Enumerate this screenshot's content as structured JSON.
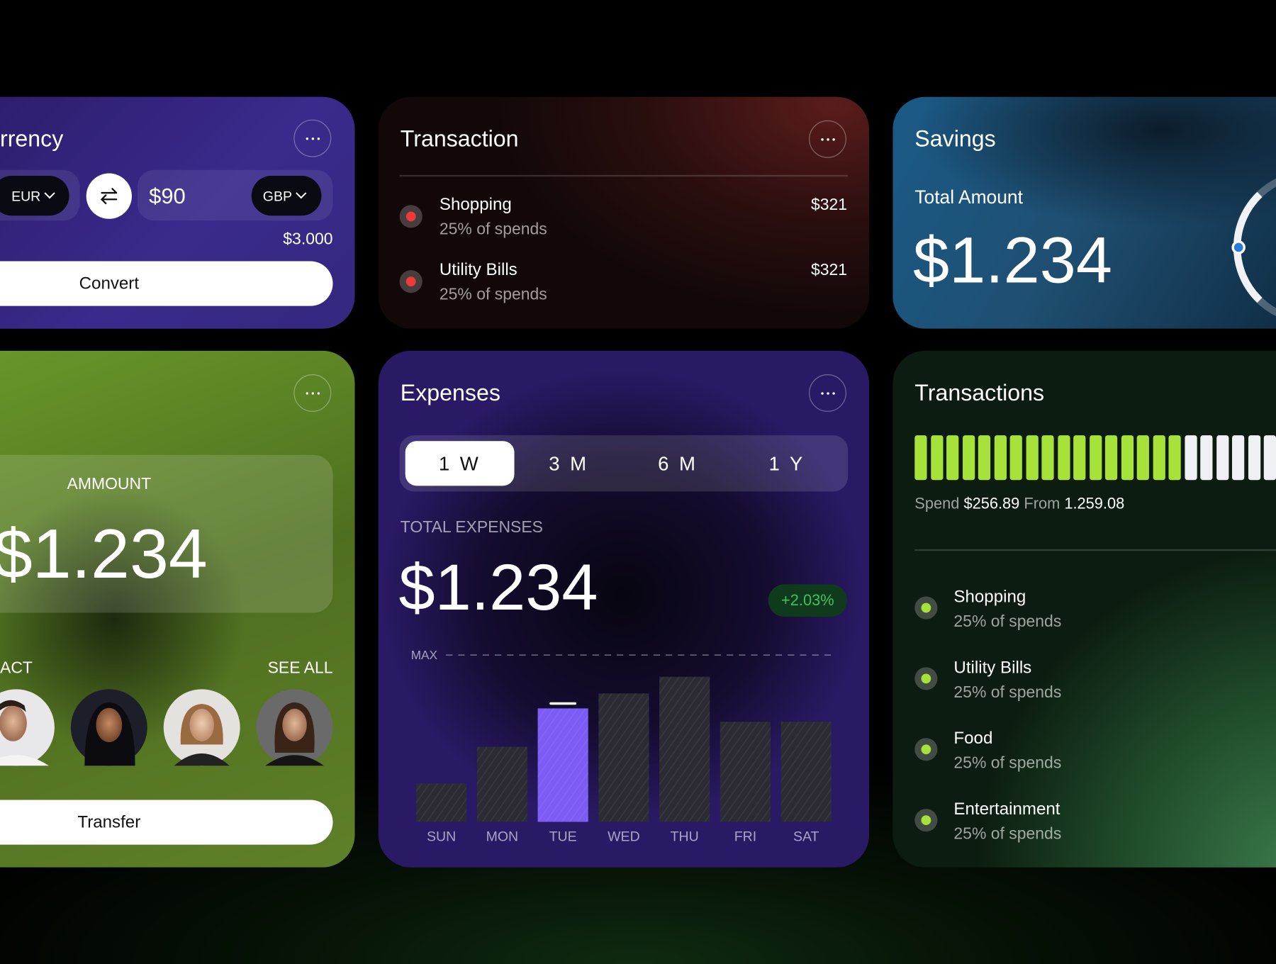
{
  "currency_card": {
    "title": "rrency",
    "from_currency": "EUR",
    "amount": "$90",
    "to_currency": "GBP",
    "balance": "$3.000",
    "button": "Convert"
  },
  "transaction_card": {
    "title": "Transaction",
    "items": [
      {
        "name": "Shopping",
        "subtitle": "25% of spends",
        "amount": "$321"
      },
      {
        "name": "Utility Bills",
        "subtitle": "25% of spends",
        "amount": "$321"
      }
    ]
  },
  "savings_card": {
    "title": "Savings",
    "label": "Total Amount",
    "amount": "$1.234"
  },
  "transfer_card": {
    "amount_label": "AMMOUNT",
    "amount": "$1.234",
    "contact_label": "ACT",
    "see_all": "SEE ALL",
    "button": "Transfer"
  },
  "expenses_card": {
    "title": "Expenses",
    "tabs": [
      "1 W",
      "3 M",
      "6 M",
      "1 Y"
    ],
    "total_label": "TOTAL EXPENSES",
    "total": "$1.234",
    "change": "+2.03%",
    "chart_data": {
      "type": "bar",
      "categories": [
        "SUN",
        "MON",
        "TUE",
        "WED",
        "THU",
        "FRI",
        "SAT"
      ],
      "values": [
        23,
        45,
        68,
        77,
        87,
        60,
        60
      ],
      "colors": [
        "#2c2b33",
        "#2c2b33",
        "#7c5cf5",
        "#2c2b33",
        "#2c2b33",
        "#2c2b33",
        "#2c2b33"
      ],
      "ylim": [
        0,
        100
      ],
      "max_label": "MAX"
    }
  },
  "transactions_card": {
    "title": "Transactions",
    "spend_label": "Spend",
    "spend": "$256.89",
    "from_label": "From",
    "from": "1.259.08",
    "items": [
      {
        "name": "Shopping",
        "subtitle": "25% of spends"
      },
      {
        "name": "Utility Bills",
        "subtitle": "25% of spends"
      },
      {
        "name": "Food",
        "subtitle": "25% of spends"
      },
      {
        "name": "Entertainment",
        "subtitle": "25% of spends"
      }
    ]
  }
}
